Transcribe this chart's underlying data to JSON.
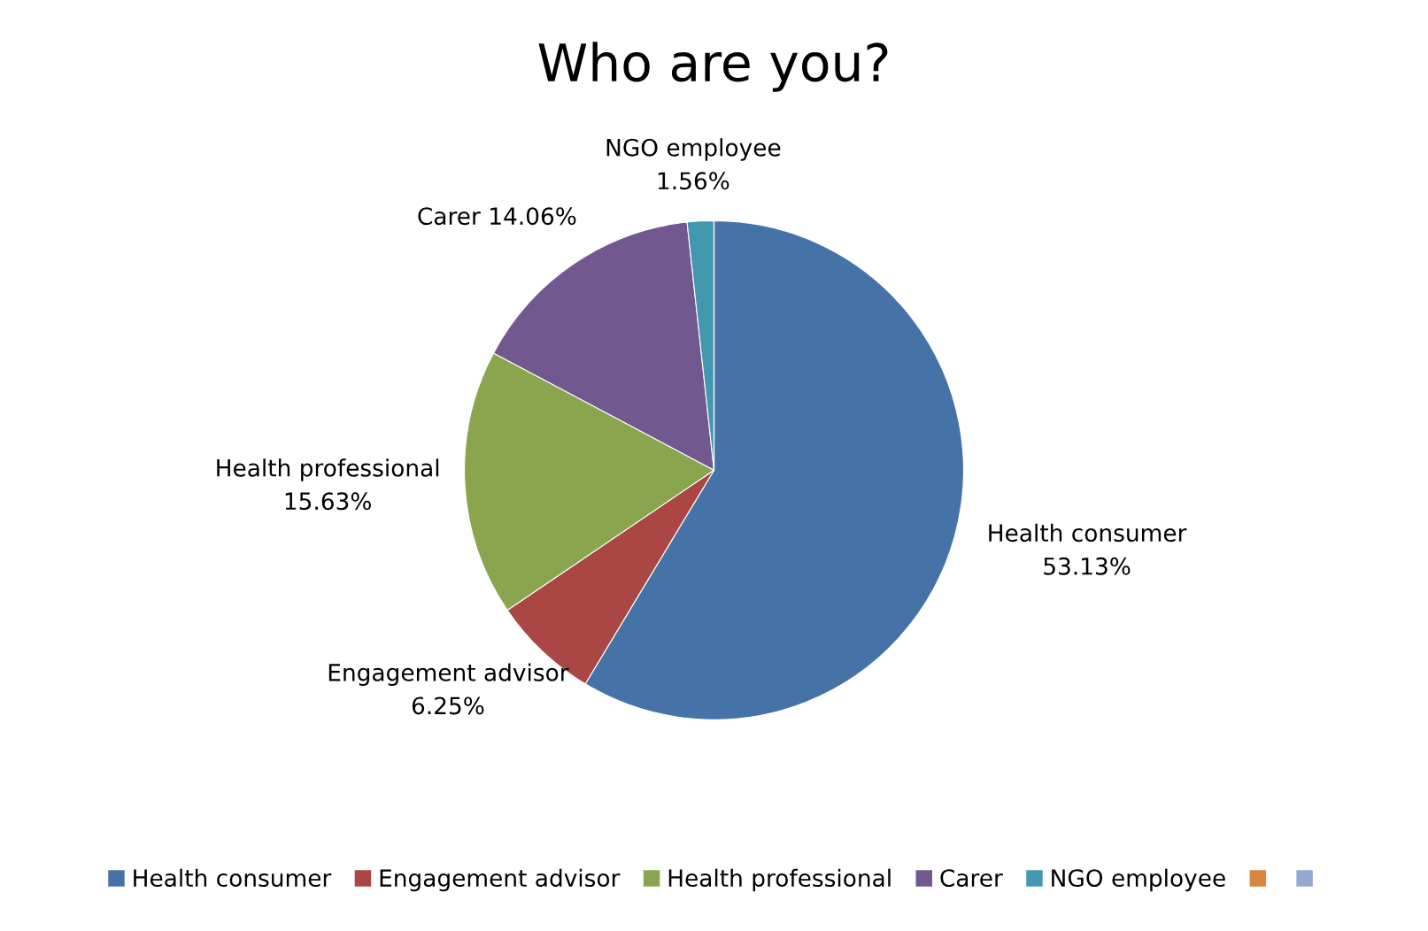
{
  "chart_data": {
    "type": "pie",
    "title": "Who are you?",
    "categories": [
      "Health consumer",
      "Engagement advisor",
      "Health professional",
      "Carer",
      "NGO employee",
      null,
      null
    ],
    "values": [
      53.13,
      6.25,
      15.63,
      14.06,
      1.56,
      0,
      0
    ],
    "colors": [
      "#4572a7",
      "#aa4643",
      "#89a54e",
      "#71588f",
      "#4198af",
      "#db843d",
      "#93a9cf"
    ],
    "value_labels": [
      "Health consumer\n53.13%",
      "Engagement advisor\n6.25%",
      "Health professional\n15.63%",
      "Carer 14.06%",
      "NGO employee\n1.56%",
      null,
      null
    ],
    "legend": "bottom"
  }
}
